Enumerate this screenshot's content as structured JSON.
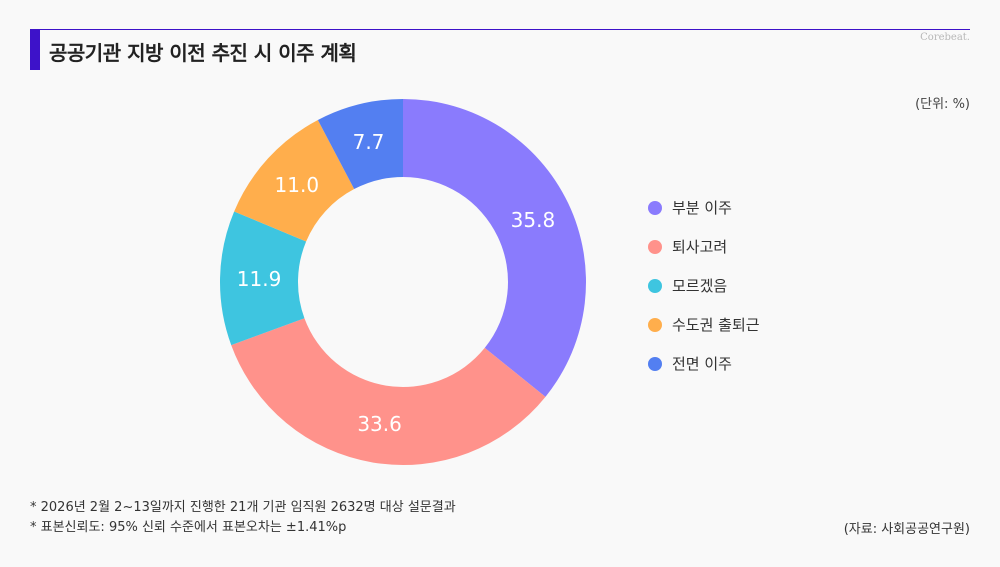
{
  "title": "공공기관 지방 이전 추진 시 이주 계획",
  "logo": "Corebeat.",
  "unit": "(단위: %)",
  "chart_data": {
    "type": "pie",
    "variant": "donut",
    "title": "공공기관 지방 이전 추진 시 이주 계획",
    "unit": "%",
    "start": "12 o'clock",
    "direction": "clockwise",
    "slices": [
      {
        "label": "부분 이주",
        "value": 35.8,
        "display": "35.8",
        "color": "#8a7bfd"
      },
      {
        "label": "퇴사고려",
        "value": 33.6,
        "display": "33.6",
        "color": "#ff928b"
      },
      {
        "label": "모르겠음",
        "value": 11.9,
        "display": "11.9",
        "color": "#3ec5e0"
      },
      {
        "label": "수도권 출퇴근",
        "value": 11.0,
        "display": "11.0",
        "color": "#ffae4c"
      },
      {
        "label": "전면 이주",
        "value": 7.7,
        "display": "7.7",
        "color": "#537ff1"
      }
    ],
    "legend_position": "right"
  },
  "notes": [
    "* 2026년 2월 2~13일까지 진행한 21개 기관 임직원 2632명 대상 설문결과",
    "* 표본신뢰도: 95% 신뢰 수준에서 표본오차는 ±1.41%p"
  ],
  "source": "(자료: 사회공공연구원)"
}
